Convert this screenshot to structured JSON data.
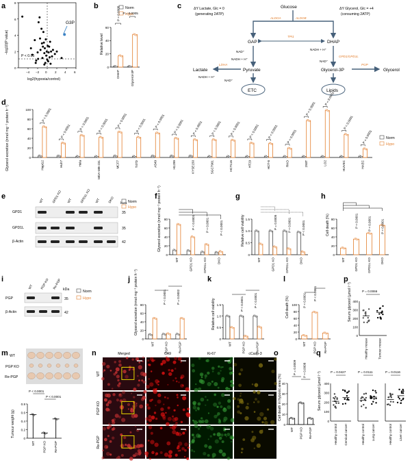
{
  "panels": {
    "a": {
      "label": "a",
      "ylabel": "−log10(P value)",
      "xlabel": "log2(hypoxia/control)",
      "annotation": "G3P",
      "threshold_label": "P < 0.05",
      "xticks": [
        "−4",
        "−2",
        "0",
        "2",
        "4",
        "6"
      ],
      "yticks": [
        "0",
        "2",
        "4",
        "6",
        "8"
      ]
    },
    "b": {
      "label": "b",
      "legend": [
        "Norm",
        "Hypo"
      ],
      "ylabel": "Relative level",
      "yticks": [
        "0",
        "20",
        "40",
        "60"
      ],
      "categories": [
        "DHAP",
        "Glycerol-3P"
      ],
      "pvals": [
        "P = 0.0005",
        "P = 0.0005"
      ]
    },
    "c": {
      "label": "c",
      "glucose": "Glucose",
      "left_title": "ΔY Lactate, Glc = 0",
      "left_sub": "(generating 2ATP)",
      "right_title": "ΔY Glycerol, Glc = +4",
      "right_sub": "(consuming 2ATP)",
      "aldoa": "ALDOA",
      "aldob": "ALDOB",
      "gap": "GAP",
      "dhap": "DHAP",
      "tpi": "TPI1",
      "nad1": "NAD⁺",
      "nadh1": "NADH + H⁺",
      "nadh2": "NADH + H⁺",
      "nad2": "NAD⁺",
      "gpd": "GPD1/GPD1L",
      "pyruvate": "Pyruvate",
      "glycerol3p": "Glycerol-3P",
      "pgp": "PGP",
      "glycerol": "Glycerol",
      "ldha": "LDHA",
      "lactate": "Lactate",
      "nadh3": "NADH + H⁺",
      "nad3": "NAD⁺",
      "etc": "ETC",
      "lipids": "Lipids"
    },
    "d": {
      "label": "d",
      "ylabel": "Glycerol excretion (nmol mg⁻¹ protein h⁻¹)",
      "yticks": [
        "0",
        "20",
        "40",
        "60",
        "80",
        "100"
      ],
      "legend": [
        "Norm",
        "Hypo"
      ],
      "pval": "P < 0.0001"
    },
    "e": {
      "label": "e",
      "lanes": [
        "WT",
        "GPD1 KO",
        "WT",
        "GPD1L KO",
        "WT",
        "DKO"
      ],
      "rows": [
        "GPD1",
        "GPD1L",
        "β-Actin"
      ],
      "kda_label": "kDa",
      "kda": [
        "35",
        "35",
        "42"
      ],
      "legend": [
        "Norm",
        "Hypo"
      ]
    },
    "f": {
      "label": "f",
      "ylabel": "Glycerol excretion (nmol mg⁻¹ protein h⁻¹)",
      "yticks": [
        "0",
        "20",
        "40",
        "60",
        "80"
      ],
      "categories": [
        "WT",
        "GPD1 KO",
        "GPD1L KO",
        "DKO"
      ],
      "pval": "P < 0.0001"
    },
    "g": {
      "label": "g",
      "ylabel": "Relative cell viability",
      "yticks": [
        "0",
        "0.5",
        "1.0",
        "1.5"
      ],
      "categories": [
        "WT",
        "GPD1 KO",
        "GPD1L KO",
        "DKO"
      ],
      "pvals": [
        "P = 0.0005",
        "P < 0.0001",
        "P < 0.0001"
      ]
    },
    "h": {
      "label": "h",
      "ylabel": "Cell death (%)",
      "yticks": [
        "0",
        "20",
        "40",
        "60",
        "80"
      ],
      "categories": [
        "WT",
        "GPD1 KO",
        "GPD1L KO",
        "DKO"
      ],
      "pval": "P < 0.0001"
    },
    "i": {
      "label": "i",
      "lanes": [
        "WT",
        "PGP KO",
        "Re-PGP"
      ],
      "rows": [
        "PGP",
        "β-Actin"
      ],
      "kda_label": "kDa",
      "kda": [
        "35",
        "42"
      ],
      "legend": [
        "Norm",
        "Hypo"
      ]
    },
    "j": {
      "label": "j",
      "ylabel": "Glycerol excretion (nmol mg⁻¹ protein h⁻¹)",
      "yticks": [
        "0",
        "20",
        "40",
        "60",
        "80"
      ],
      "categories": [
        "WT",
        "PGP KO",
        "Re-PGP"
      ],
      "pvals": [
        "P < 0.0001",
        "P = 0.0002"
      ]
    },
    "k": {
      "label": "k",
      "ylabel": "Relative cell viability",
      "yticks": [
        "0",
        "0.5",
        "1.0",
        "1.5"
      ],
      "categories": [
        "WT",
        "PGP KO",
        "Re-PGP"
      ],
      "pvals": [
        "P < 0.0001",
        "P < 0.0001"
      ]
    },
    "l": {
      "label": "l",
      "ylabel": "Cell death (%)",
      "yticks": [
        "0",
        "20",
        "40",
        "60",
        "80",
        "100"
      ],
      "categories": [
        "WT",
        "PGP KO",
        "Re-PGP"
      ],
      "pvals": [
        "P < 0.0001",
        "P < 0.0001"
      ]
    },
    "m": {
      "label": "m",
      "rows": [
        "WT",
        "PGP KO",
        "Re-PGP"
      ],
      "ylabel": "Tumour weight (g)",
      "yticks": [
        "0",
        "0.2",
        "0.4",
        "0.6",
        "0.8"
      ],
      "categories": [
        "WT",
        "PGP KO",
        "Re-PGP"
      ],
      "pvals": [
        "P < 0.0001",
        "P < 0.0001"
      ]
    },
    "n": {
      "label": "n",
      "cols": [
        "Merged",
        "CA9",
        "Ki-67",
        "cCasp-3"
      ],
      "rows": [
        "WT",
        "PGP KO",
        "Re-PGP"
      ]
    },
    "o": {
      "label": "o",
      "ylabel": "Cell death in hypoxic area (%)",
      "yticks": [
        "0",
        "10",
        "20",
        "30",
        "40"
      ],
      "categories": [
        "WT",
        "PGP KO",
        "Re-PGP"
      ],
      "pvals": [
        "P = 0.0009",
        "P = 0.0008"
      ]
    },
    "p": {
      "label": "p",
      "ylabel": "Serum glycerol (μmol l⁻¹)",
      "yticks": [
        "0",
        "100",
        "200",
        "300",
        "400"
      ],
      "categories": [
        "Healthy mouse",
        "Tumour mouse"
      ],
      "pval": "P = 0.0066"
    },
    "q": {
      "label": "q",
      "ylabel": "Serum glycerol (μmol l⁻¹)",
      "yticks": [
        "0",
        "100",
        "200",
        "300",
        "400"
      ],
      "groups": [
        {
          "cats": [
            "Healthy control",
            "Cervical cancer"
          ],
          "p": "P = 0.0427"
        },
        {
          "cats": [
            "Healthy control",
            "Lung cancer"
          ],
          "p": "P = 0.0111"
        },
        {
          "cats": [
            "Healthy control",
            "Liver cancer"
          ],
          "p": "P = 0.0116"
        }
      ]
    }
  },
  "chart_data": [
    {
      "type": "scatter",
      "panel": "a",
      "xlabel": "log2(hypoxia/control)",
      "ylabel": "−log10(P value)",
      "xlim": [
        -6,
        6
      ],
      "ylim": [
        0,
        8
      ],
      "points": [
        [
          -5.2,
          6.3
        ],
        [
          -3.4,
          2.4
        ],
        [
          -3.1,
          1.6
        ],
        [
          -2.6,
          3.4
        ],
        [
          -2.3,
          0.9
        ],
        [
          -2.0,
          1.9
        ],
        [
          -1.8,
          5.6
        ],
        [
          -1.6,
          6.2
        ],
        [
          -1.5,
          3.6
        ],
        [
          -1.4,
          2.2
        ],
        [
          -1.2,
          4.8
        ],
        [
          -1.1,
          3.0
        ],
        [
          -1.0,
          1.2
        ],
        [
          -0.9,
          2.6
        ],
        [
          -0.8,
          4.4
        ],
        [
          -0.7,
          3.1
        ],
        [
          -0.6,
          1.8
        ],
        [
          -0.5,
          2.4
        ],
        [
          -0.4,
          0.6
        ],
        [
          -0.3,
          3.5
        ],
        [
          -0.2,
          1.5
        ],
        [
          -0.1,
          2.0
        ],
        [
          0.0,
          1.0
        ],
        [
          0.1,
          2.7
        ],
        [
          0.2,
          0.8
        ],
        [
          0.3,
          1.9
        ],
        [
          0.4,
          2.6
        ],
        [
          0.5,
          1.3
        ],
        [
          0.6,
          3.2
        ],
        [
          0.8,
          2.0
        ],
        [
          1.0,
          1.4
        ],
        [
          1.2,
          2.2
        ],
        [
          1.6,
          1.7
        ],
        [
          2.0,
          2.0
        ],
        [
          3.0,
          1.2
        ],
        [
          3.6,
          4.1
        ],
        [
          -1.9,
          1.1
        ],
        [
          -2.4,
          0.6
        ],
        [
          -0.6,
          0.4
        ],
        [
          0.7,
          0.5
        ]
      ]
    },
    {
      "type": "bar",
      "panel": "b",
      "categories": [
        "DHAP",
        "Glycerol-3P"
      ],
      "series": [
        {
          "name": "Norm",
          "values": [
            1,
            1
          ]
        },
        {
          "name": "Hypo",
          "values": [
            17,
            49
          ]
        }
      ],
      "ylim": [
        0,
        60
      ]
    },
    {
      "type": "bar",
      "panel": "d",
      "categories": [
        "HepG2",
        "Huh7",
        "Hela",
        "MDA-MB-231",
        "MCF7",
        "T47D",
        "A549",
        "H1299",
        "KYSE150",
        "SGC7901",
        "HCT116",
        "HT29",
        "HCT-8",
        "RKO",
        "293T",
        "LO2",
        "HUVEC",
        "HAEC"
      ],
      "series": [
        {
          "name": "Norm",
          "values": [
            3,
            3,
            2,
            2,
            3,
            2,
            3,
            3,
            3,
            2,
            2,
            2,
            2,
            2,
            2,
            2,
            2,
            2
          ]
        },
        {
          "name": "Hypo",
          "values": [
            64,
            30,
            46,
            42,
            53,
            42,
            51,
            40,
            37,
            37,
            36,
            30,
            29,
            19,
            77,
            98,
            48,
            18
          ]
        }
      ],
      "ylim": [
        0,
        100
      ]
    },
    {
      "type": "bar",
      "panel": "f",
      "categories": [
        "WT",
        "GPD1 KO",
        "GPD1L KO",
        "DKO"
      ],
      "series": [
        {
          "name": "Norm",
          "values": [
            10,
            9,
            6,
            5
          ]
        },
        {
          "name": "Hypo",
          "values": [
            68,
            40,
            23,
            7
          ]
        }
      ],
      "ylim": [
        0,
        80
      ]
    },
    {
      "type": "bar",
      "panel": "g",
      "categories": [
        "WT",
        "GPD1 KO",
        "GPD1L KO",
        "DKO"
      ],
      "series": [
        {
          "name": "Norm",
          "values": [
            1.0,
            1.0,
            1.0,
            0.95
          ]
        },
        {
          "name": "Hypo",
          "values": [
            0.45,
            0.33,
            0.25,
            0.12
          ]
        }
      ],
      "ylim": [
        0,
        1.5
      ]
    },
    {
      "type": "bar",
      "panel": "h",
      "categories": [
        "WT",
        "GPD1 KO",
        "GPD1L KO",
        "DKO"
      ],
      "series": [
        {
          "name": "Hypo",
          "values": [
            15,
            35,
            48,
            66
          ]
        }
      ],
      "ylim": [
        0,
        80
      ]
    },
    {
      "type": "bar",
      "panel": "j",
      "categories": [
        "WT",
        "PGP KO",
        "Re-PGP"
      ],
      "series": [
        {
          "name": "Norm",
          "values": [
            10,
            11,
            11
          ]
        },
        {
          "name": "Hypo",
          "values": [
            48,
            12,
            48
          ]
        }
      ],
      "ylim": [
        0,
        80
      ]
    },
    {
      "type": "bar",
      "panel": "k",
      "categories": [
        "WT",
        "PGP KO",
        "Re-PGP"
      ],
      "series": [
        {
          "name": "Norm",
          "values": [
            1.0,
            1.0,
            1.0
          ]
        },
        {
          "name": "Hypo",
          "values": [
            0.5,
            0.12,
            0.52
          ]
        }
      ],
      "ylim": [
        0,
        1.5
      ]
    },
    {
      "type": "bar",
      "panel": "l",
      "categories": [
        "WT",
        "PGP KO",
        "Re-PGP"
      ],
      "series": [
        {
          "name": "Hypo",
          "values": [
            10,
            78,
            17
          ]
        }
      ],
      "ylim": [
        0,
        100
      ]
    },
    {
      "type": "bar",
      "panel": "m",
      "categories": [
        "WT",
        "PGP KO",
        "Re-PGP"
      ],
      "values": [
        0.55,
        0.12,
        0.45
      ],
      "ylim": [
        0,
        0.8
      ]
    },
    {
      "type": "bar",
      "panel": "o",
      "categories": [
        "WT",
        "PGP KO",
        "Re-PGP"
      ],
      "values": [
        6,
        21,
        6
      ],
      "ylim": [
        0,
        40
      ]
    },
    {
      "type": "scatter",
      "panel": "p",
      "categories": [
        "Healthy mouse",
        "Tumour mouse"
      ],
      "means": [
        230,
        270
      ],
      "ylim": [
        0,
        400
      ]
    },
    {
      "type": "scatter",
      "panel": "q",
      "categories": [
        "Healthy control",
        "Cervical cancer",
        "Healthy control",
        "Lung cancer",
        "Healthy control",
        "Liver cancer"
      ],
      "means": [
        210,
        250,
        220,
        255,
        230,
        270
      ],
      "ylim": [
        0,
        400
      ]
    }
  ],
  "colors": {
    "norm": "#444444",
    "hypo": "#e37d2b",
    "arrow": "#46607a",
    "enzyme": "#e37d2b"
  }
}
